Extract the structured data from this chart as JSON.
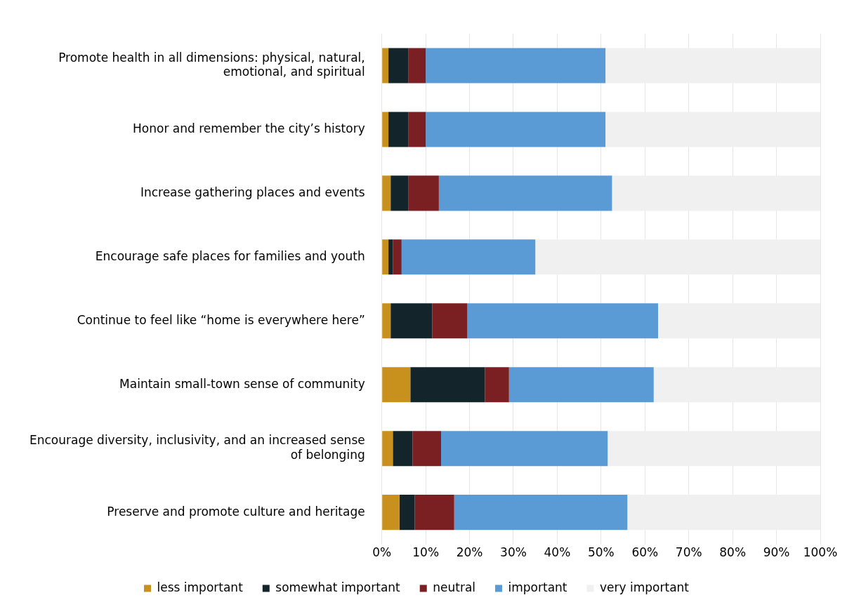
{
  "chart_data": {
    "type": "bar",
    "orientation": "horizontal",
    "stacked": true,
    "categories": [
      "Promote health in all dimensions: physical, natural, emotional, and spiritual",
      "Honor and remember the city’s history",
      "Increase gathering places and events",
      "Encourage safe places for families and youth",
      "Continue to feel like “home is everywhere here”",
      "Maintain small-town sense of community",
      "Encourage diversity, inclusivity, and an increased sense of belonging",
      "Preserve and promote culture and heritage"
    ],
    "series": [
      {
        "name": "less important",
        "color": "#c8901c",
        "values": [
          1.5,
          1.5,
          2,
          1.5,
          2,
          6.5,
          2.5,
          4
        ]
      },
      {
        "name": "somewhat important",
        "color": "#13252b",
        "values": [
          4.5,
          4.5,
          4,
          1,
          9.5,
          17,
          4.5,
          3.5
        ]
      },
      {
        "name": "neutral",
        "color": "#7a1f22",
        "values": [
          4,
          4,
          7,
          2,
          8,
          5.5,
          6.5,
          9
        ]
      },
      {
        "name": "important",
        "color": "#5b9bd5",
        "values": [
          41,
          41,
          39.5,
          30.5,
          43.5,
          33,
          38,
          39.5
        ]
      },
      {
        "name": "very important",
        "color": "#f0f0f0",
        "values": [
          49,
          49,
          47.5,
          65,
          37,
          38,
          48.5,
          44
        ]
      }
    ],
    "xlim": [
      0,
      100
    ],
    "xticks": [
      {
        "value": 0,
        "label": "0%"
      },
      {
        "value": 10,
        "label": "10%"
      },
      {
        "value": 20,
        "label": "20%"
      },
      {
        "value": 30,
        "label": "30%"
      },
      {
        "value": 40,
        "label": "40%"
      },
      {
        "value": 50,
        "label": "50%"
      },
      {
        "value": 60,
        "label": "60%"
      },
      {
        "value": 70,
        "label": "70%"
      },
      {
        "value": 80,
        "label": "80%"
      },
      {
        "value": 90,
        "label": "90%"
      },
      {
        "value": 100,
        "label": "100%"
      }
    ],
    "grid": "x",
    "legend": "bottom"
  }
}
